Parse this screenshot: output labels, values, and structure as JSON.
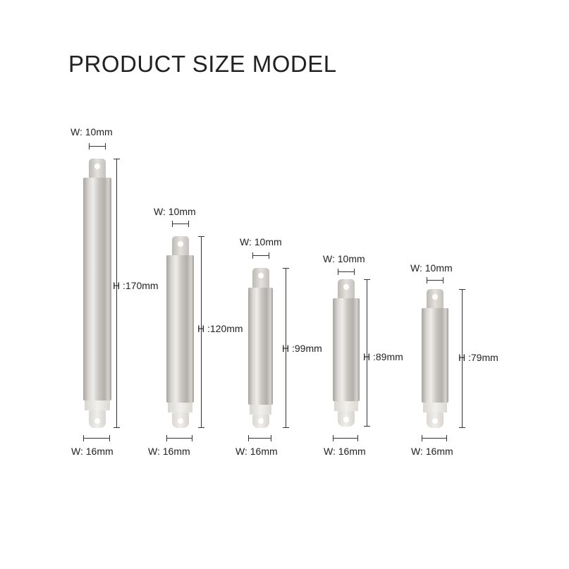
{
  "title": "PRODUCT SIZE MODEL",
  "models": [
    {
      "top_width": "W: 10mm",
      "height": "H :170mm",
      "bottom_width": "W: 16mm"
    },
    {
      "top_width": "W: 10mm",
      "height": "H :120mm",
      "bottom_width": "W: 16mm"
    },
    {
      "top_width": "W: 10mm",
      "height": "H :99mm",
      "bottom_width": "W: 16mm"
    },
    {
      "top_width": "W: 10mm",
      "height": "H :89mm",
      "bottom_width": "W: 16mm"
    },
    {
      "top_width": "W: 10mm",
      "height": "H :79mm",
      "bottom_width": "W: 16mm"
    }
  ]
}
